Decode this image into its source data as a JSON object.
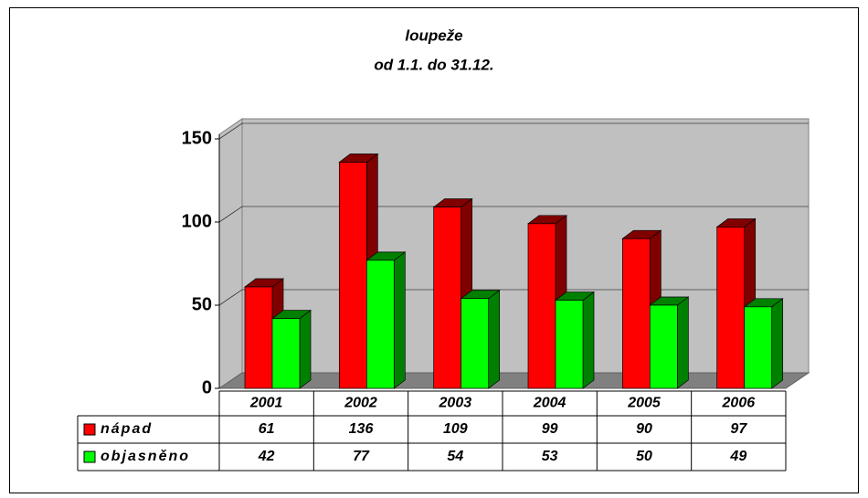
{
  "chart_data": {
    "type": "bar",
    "title": "loupeže",
    "subtitle": "od 1.1. do 31.12.",
    "categories": [
      "2001",
      "2002",
      "2003",
      "2004",
      "2005",
      "2006"
    ],
    "series": [
      {
        "name": "nápad",
        "color": "#ff0000",
        "values": [
          61,
          136,
          109,
          99,
          90,
          97
        ]
      },
      {
        "name": "objasněno",
        "color": "#00ff00",
        "values": [
          42,
          77,
          54,
          53,
          50,
          49
        ]
      }
    ],
    "ylim": [
      0,
      150
    ],
    "yticks": [
      0,
      50,
      100,
      150
    ],
    "grid": true
  }
}
